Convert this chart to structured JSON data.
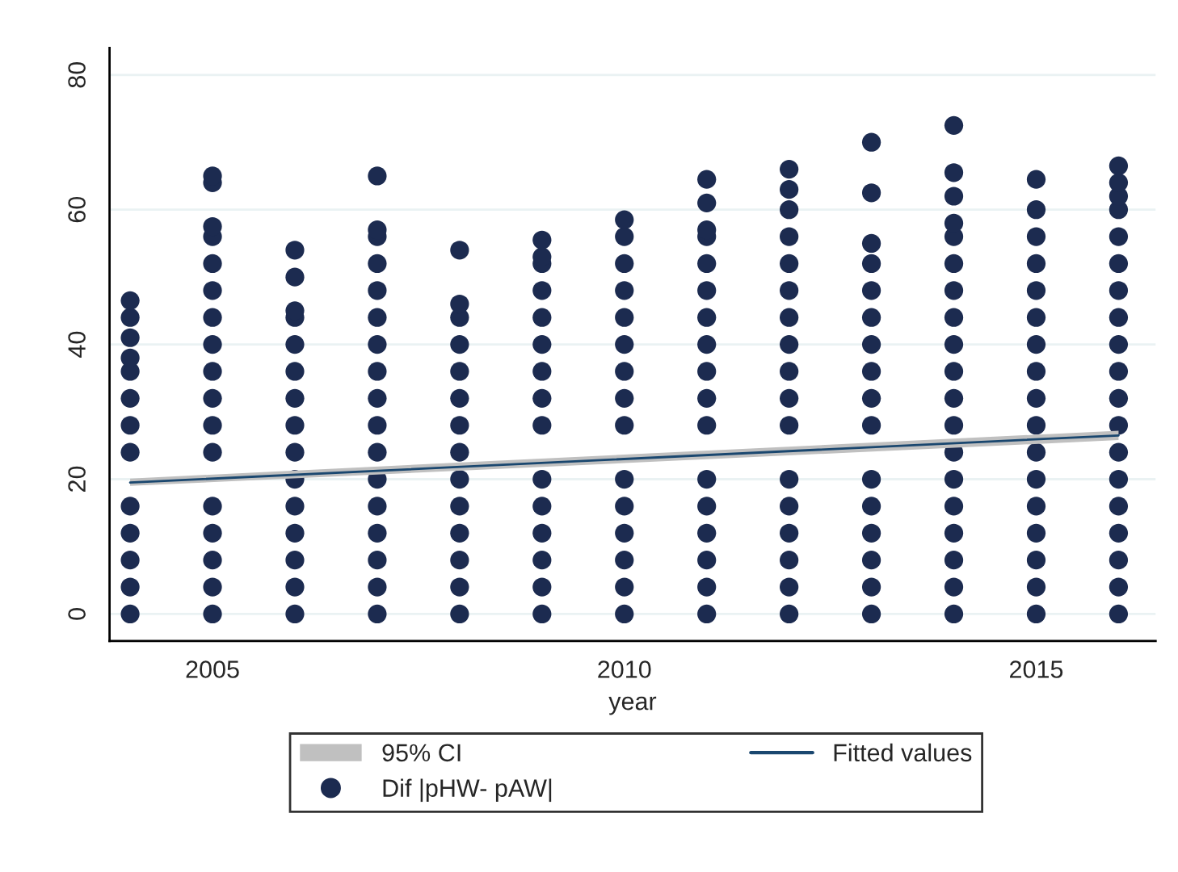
{
  "chart_data": {
    "type": "scatter",
    "xlabel": "year",
    "xlim": [
      2003.75,
      2016.45
    ],
    "xticks": [
      2005,
      2010,
      2015
    ],
    "ylim": [
      -4,
      84
    ],
    "yticks": [
      0,
      20,
      40,
      60,
      80
    ],
    "grid": "y",
    "legend": "bottom",
    "marker": "circle",
    "series": [
      {
        "name": "Dif |pHW- pAW|",
        "color": "#1c2b50",
        "x": [
          2004,
          2004,
          2004,
          2004,
          2004,
          2004,
          2004,
          2004,
          2004,
          2004,
          2004,
          2004,
          2004,
          2005,
          2005,
          2005,
          2005,
          2005,
          2005,
          2005,
          2005,
          2005,
          2005,
          2005,
          2005,
          2005,
          2005,
          2005,
          2005,
          2005,
          2006,
          2006,
          2006,
          2006,
          2006,
          2006,
          2006,
          2006,
          2006,
          2006,
          2006,
          2006,
          2006,
          2006,
          2006,
          2007,
          2007,
          2007,
          2007,
          2007,
          2007,
          2007,
          2007,
          2007,
          2007,
          2007,
          2007,
          2007,
          2007,
          2007,
          2007,
          2007,
          2008,
          2008,
          2008,
          2008,
          2008,
          2008,
          2008,
          2008,
          2008,
          2008,
          2008,
          2008,
          2008,
          2008,
          2009,
          2009,
          2009,
          2009,
          2009,
          2009,
          2009,
          2009,
          2009,
          2009,
          2009,
          2009,
          2009,
          2009,
          2009,
          2010,
          2010,
          2010,
          2010,
          2010,
          2010,
          2010,
          2010,
          2010,
          2010,
          2010,
          2010,
          2010,
          2010,
          2010,
          2011,
          2011,
          2011,
          2011,
          2011,
          2011,
          2011,
          2011,
          2011,
          2011,
          2011,
          2011,
          2011,
          2011,
          2011,
          2011,
          2011,
          2012,
          2012,
          2012,
          2012,
          2012,
          2012,
          2012,
          2012,
          2012,
          2012,
          2012,
          2012,
          2012,
          2012,
          2012,
          2012,
          2012,
          2013,
          2013,
          2013,
          2013,
          2013,
          2013,
          2013,
          2013,
          2013,
          2013,
          2013,
          2013,
          2013,
          2013,
          2013,
          2013,
          2014,
          2014,
          2014,
          2014,
          2014,
          2014,
          2014,
          2014,
          2014,
          2014,
          2014,
          2014,
          2014,
          2014,
          2014,
          2014,
          2014,
          2014,
          2014,
          2015,
          2015,
          2015,
          2015,
          2015,
          2015,
          2015,
          2015,
          2015,
          2015,
          2015,
          2015,
          2015,
          2015,
          2015,
          2015,
          2015,
          2016,
          2016,
          2016,
          2016,
          2016,
          2016,
          2016,
          2016,
          2016,
          2016,
          2016,
          2016,
          2016,
          2016,
          2016,
          2016,
          2016,
          2016,
          2016
        ],
        "values": [
          0,
          4,
          8,
          12,
          16,
          24,
          28,
          32,
          36,
          38,
          41,
          44,
          46.5,
          0,
          4,
          8,
          12,
          16,
          24,
          28,
          32,
          36,
          40,
          44,
          48,
          52,
          56,
          57.5,
          64,
          65,
          0,
          4,
          8,
          12,
          16,
          20,
          24,
          28,
          32,
          36,
          40,
          44,
          45,
          50,
          54,
          0,
          4,
          8,
          12,
          16,
          20,
          24,
          28,
          32,
          36,
          40,
          44,
          48,
          52,
          56,
          57,
          65,
          0,
          4,
          8,
          12,
          16,
          20,
          24,
          28,
          32,
          36,
          40,
          44,
          46,
          54,
          0,
          4,
          8,
          12,
          16,
          20,
          28,
          32,
          36,
          40,
          44,
          48,
          52,
          53,
          55.5,
          0,
          4,
          8,
          12,
          16,
          20,
          28,
          32,
          36,
          40,
          44,
          48,
          52,
          56,
          58.5,
          0,
          4,
          8,
          12,
          16,
          20,
          28,
          32,
          36,
          40,
          44,
          48,
          52,
          56,
          57,
          61,
          64.5,
          0,
          4,
          8,
          12,
          16,
          20,
          28,
          32,
          36,
          40,
          44,
          48,
          52,
          56,
          60,
          63,
          66,
          0,
          4,
          8,
          12,
          16,
          20,
          28,
          32,
          36,
          40,
          44,
          48,
          52,
          55,
          62.5,
          70,
          0,
          4,
          8,
          12,
          16,
          20,
          24,
          28,
          32,
          36,
          40,
          44,
          48,
          52,
          56,
          58,
          62,
          65.5,
          72.5,
          0,
          4,
          8,
          12,
          16,
          20,
          24,
          28,
          32,
          36,
          40,
          44,
          48,
          52,
          56,
          60,
          64.5,
          0,
          4,
          8,
          12,
          16,
          20,
          24,
          28,
          32,
          36,
          40,
          44,
          48,
          52,
          56,
          60,
          62,
          64,
          66.5
        ]
      },
      {
        "type": "line",
        "name": "Fitted values",
        "color": "#1a476f",
        "marker": "none",
        "x": [
          2004,
          2016
        ],
        "values": [
          19.5,
          26.5
        ],
        "lower": [
          19.0,
          25.8
        ],
        "upper": [
          20.1,
          27.2
        ]
      }
    ],
    "annotations": [
      "95% CI"
    ]
  }
}
